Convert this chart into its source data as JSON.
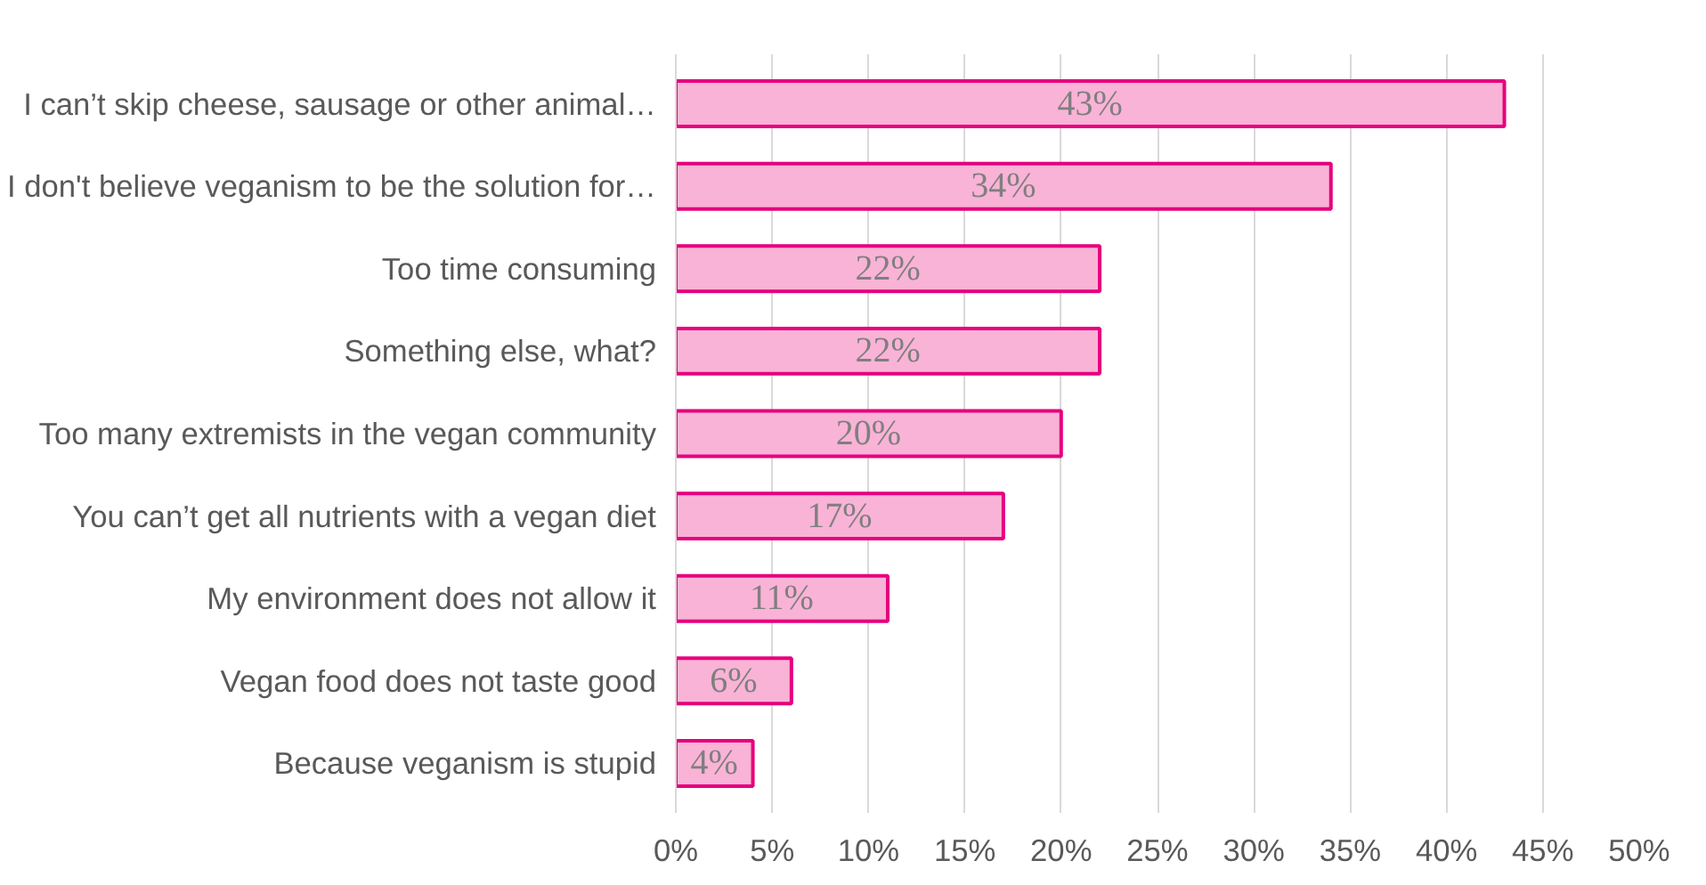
{
  "chart_data": {
    "type": "bar",
    "orientation": "horizontal",
    "categories": [
      "I can’t skip cheese, sausage or other animal…",
      "I don't believe veganism to be the solution for…",
      "Too time consuming",
      "Something else, what?",
      "Too many extremists in the vegan community",
      "You can’t get all nutrients with a vegan diet",
      "My environment does not allow it",
      "Vegan food does not taste good",
      "Because veganism is stupid"
    ],
    "values": [
      43,
      34,
      22,
      22,
      20,
      17,
      11,
      6,
      4
    ],
    "value_labels": [
      "43%",
      "34%",
      "22%",
      "22%",
      "20%",
      "17%",
      "11%",
      "6%",
      "4%"
    ],
    "color": "#f9b3d6",
    "xlim": [
      0,
      50
    ],
    "xticks": [
      {
        "value": 0,
        "label": "0%"
      },
      {
        "value": 5,
        "label": "5%"
      },
      {
        "value": 10,
        "label": "10%"
      },
      {
        "value": 15,
        "label": "15%"
      },
      {
        "value": 20,
        "label": "20%"
      },
      {
        "value": 25,
        "label": "25%"
      },
      {
        "value": 30,
        "label": "30%"
      },
      {
        "value": 35,
        "label": "35%"
      },
      {
        "value": 40,
        "label": "40%"
      },
      {
        "value": 45,
        "label": "45%"
      },
      {
        "value": 50,
        "label": "50%"
      }
    ],
    "grid": "x"
  }
}
